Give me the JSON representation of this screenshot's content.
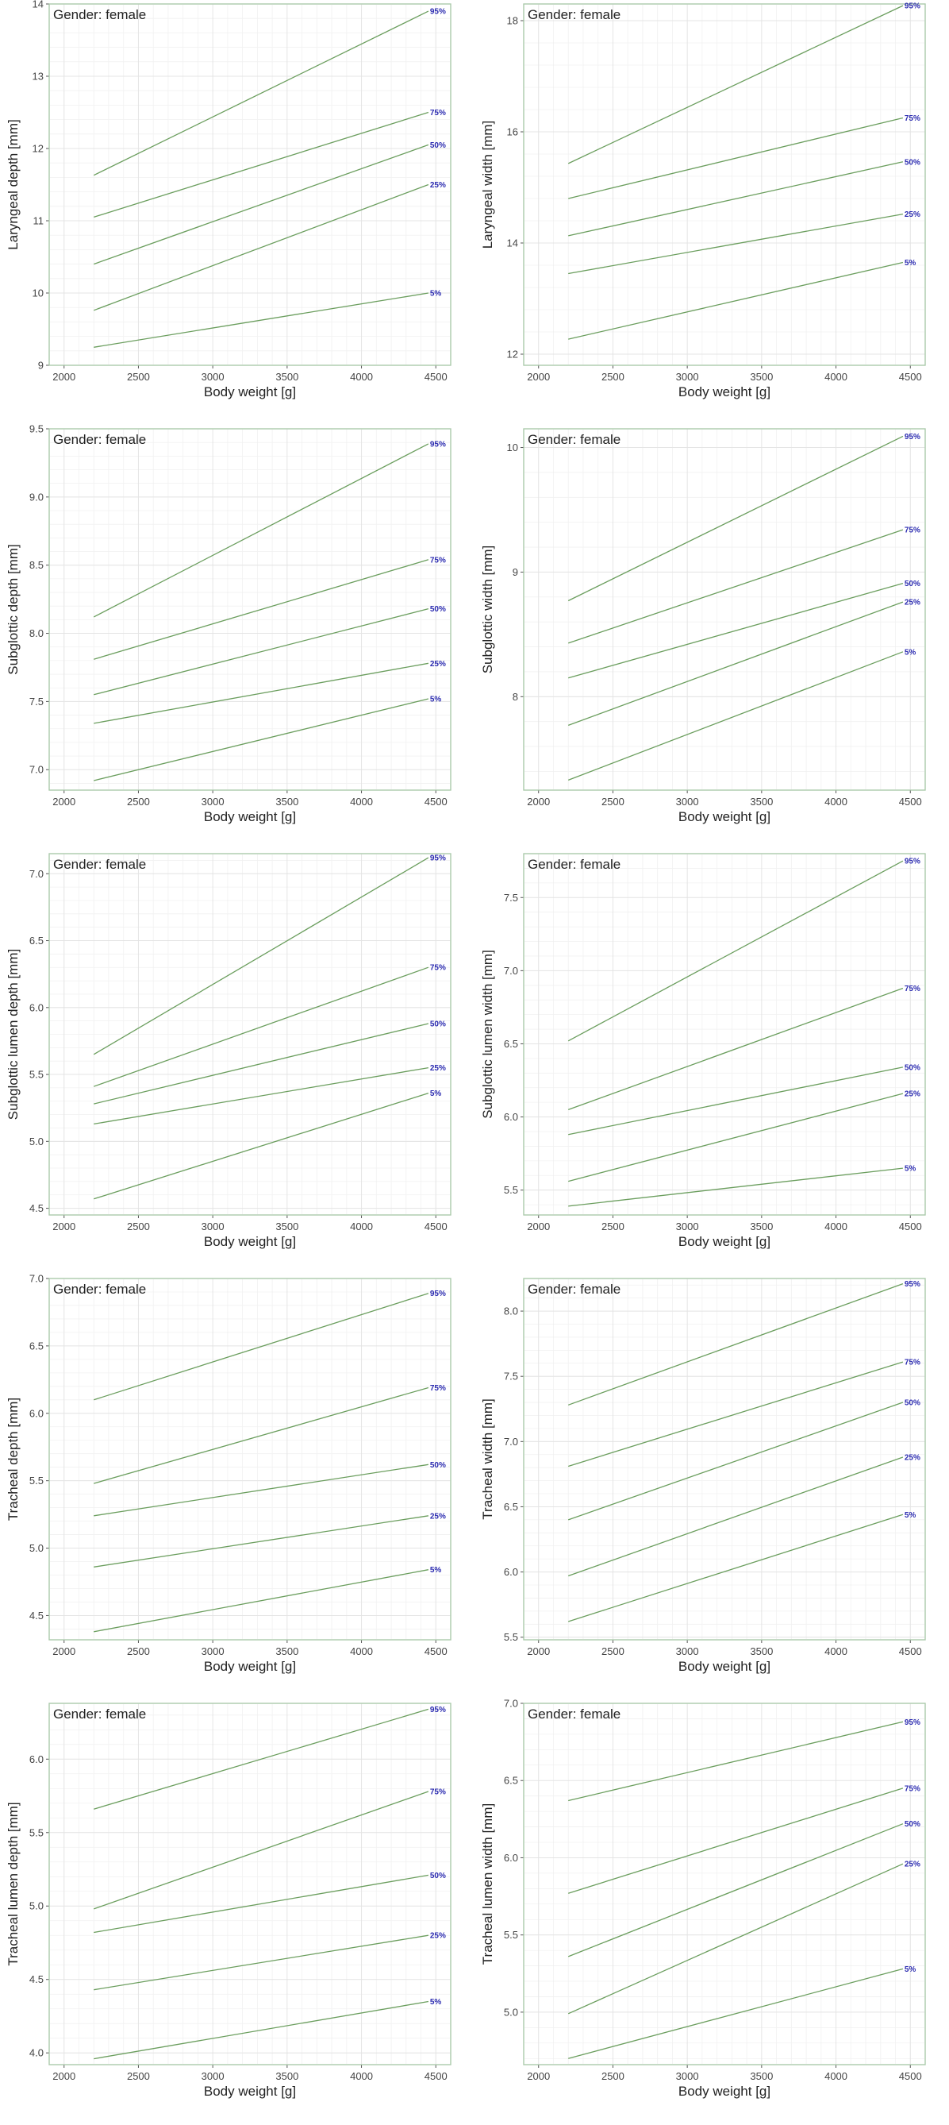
{
  "chart_data": [
    {
      "type": "line",
      "title": "Gender: female",
      "xlabel": "Body weight [g]",
      "ylabel": "Laryngeal depth [mm]",
      "xlim": [
        1900,
        4600
      ],
      "ylim": [
        9.0,
        14.0
      ],
      "xticks": [
        2000,
        2500,
        3000,
        3500,
        4000,
        4500
      ],
      "yticks": [
        9,
        10,
        11,
        12,
        13,
        14
      ],
      "x": [
        2200,
        4450
      ],
      "series": [
        {
          "name": "5%",
          "values": [
            9.25,
            10.0
          ]
        },
        {
          "name": "25%",
          "values": [
            9.76,
            11.5
          ]
        },
        {
          "name": "50%",
          "values": [
            10.4,
            12.05
          ]
        },
        {
          "name": "75%",
          "values": [
            11.05,
            12.5
          ]
        },
        {
          "name": "95%",
          "values": [
            11.63,
            13.9
          ]
        }
      ]
    },
    {
      "type": "line",
      "title": "Gender: female",
      "xlabel": "Body weight [g]",
      "ylabel": "Laryngeal width [mm]",
      "xlim": [
        1900,
        4600
      ],
      "ylim": [
        11.8,
        18.3
      ],
      "xticks": [
        2000,
        2500,
        3000,
        3500,
        4000,
        4500
      ],
      "yticks": [
        12,
        14,
        16,
        18
      ],
      "x": [
        2200,
        4450
      ],
      "series": [
        {
          "name": "5%",
          "values": [
            12.27,
            13.65
          ]
        },
        {
          "name": "25%",
          "values": [
            13.45,
            14.52
          ]
        },
        {
          "name": "50%",
          "values": [
            14.13,
            15.46
          ]
        },
        {
          "name": "75%",
          "values": [
            14.8,
            16.25
          ]
        },
        {
          "name": "95%",
          "values": [
            15.43,
            18.27
          ]
        }
      ]
    },
    {
      "type": "line",
      "title": "Gender: female",
      "xlabel": "Body weight [g]",
      "ylabel": "Subglottic depth [mm]",
      "xlim": [
        1900,
        4600
      ],
      "ylim": [
        6.85,
        9.5
      ],
      "xticks": [
        2000,
        2500,
        3000,
        3500,
        4000,
        4500
      ],
      "yticks": [
        7.0,
        7.5,
        8.0,
        8.5,
        9.0,
        9.5
      ],
      "x": [
        2200,
        4450
      ],
      "series": [
        {
          "name": "5%",
          "values": [
            6.92,
            7.52
          ]
        },
        {
          "name": "25%",
          "values": [
            7.34,
            7.78
          ]
        },
        {
          "name": "50%",
          "values": [
            7.55,
            8.18
          ]
        },
        {
          "name": "75%",
          "values": [
            7.81,
            8.54
          ]
        },
        {
          "name": "95%",
          "values": [
            8.12,
            9.39
          ]
        }
      ]
    },
    {
      "type": "line",
      "title": "Gender: female",
      "xlabel": "Body weight [g]",
      "ylabel": "Subglottic width [mm]",
      "xlim": [
        1900,
        4600
      ],
      "ylim": [
        7.25,
        10.15
      ],
      "xticks": [
        2000,
        2500,
        3000,
        3500,
        4000,
        4500
      ],
      "yticks": [
        8,
        9,
        10
      ],
      "x": [
        2200,
        4450
      ],
      "series": [
        {
          "name": "5%",
          "values": [
            7.33,
            8.36
          ]
        },
        {
          "name": "25%",
          "values": [
            7.77,
            8.76
          ]
        },
        {
          "name": "50%",
          "values": [
            8.15,
            8.91
          ]
        },
        {
          "name": "75%",
          "values": [
            8.43,
            9.34
          ]
        },
        {
          "name": "95%",
          "values": [
            8.77,
            10.09
          ]
        }
      ]
    },
    {
      "type": "line",
      "title": "Gender: female",
      "xlabel": "Body weight [g]",
      "ylabel": "Subglottic lumen depth [mm]",
      "xlim": [
        1900,
        4600
      ],
      "ylim": [
        4.45,
        7.15
      ],
      "xticks": [
        2000,
        2500,
        3000,
        3500,
        4000,
        4500
      ],
      "yticks": [
        4.5,
        5.0,
        5.5,
        6.0,
        6.5,
        7.0
      ],
      "x": [
        2200,
        4450
      ],
      "series": [
        {
          "name": "5%",
          "values": [
            4.57,
            5.36
          ]
        },
        {
          "name": "25%",
          "values": [
            5.13,
            5.55
          ]
        },
        {
          "name": "50%",
          "values": [
            5.28,
            5.88
          ]
        },
        {
          "name": "75%",
          "values": [
            5.41,
            6.3
          ]
        },
        {
          "name": "95%",
          "values": [
            5.65,
            7.12
          ]
        }
      ]
    },
    {
      "type": "line",
      "title": "Gender: female",
      "xlabel": "Body weight [g]",
      "ylabel": "Subglottic lumen width [mm]",
      "xlim": [
        1900,
        4600
      ],
      "ylim": [
        5.33,
        7.8
      ],
      "xticks": [
        2000,
        2500,
        3000,
        3500,
        4000,
        4500
      ],
      "yticks": [
        5.5,
        6.0,
        6.5,
        7.0,
        7.5
      ],
      "x": [
        2200,
        4450
      ],
      "series": [
        {
          "name": "5%",
          "values": [
            5.39,
            5.65
          ]
        },
        {
          "name": "25%",
          "values": [
            5.56,
            6.16
          ]
        },
        {
          "name": "50%",
          "values": [
            5.88,
            6.34
          ]
        },
        {
          "name": "75%",
          "values": [
            6.05,
            6.88
          ]
        },
        {
          "name": "95%",
          "values": [
            6.52,
            7.75
          ]
        }
      ]
    },
    {
      "type": "line",
      "title": "Gender: female",
      "xlabel": "Body weight [g]",
      "ylabel": "Tracheal depth [mm]",
      "xlim": [
        1900,
        4600
      ],
      "ylim": [
        4.32,
        7.0
      ],
      "xticks": [
        2000,
        2500,
        3000,
        3500,
        4000,
        4500
      ],
      "yticks": [
        4.5,
        5.0,
        5.5,
        6.0,
        6.5,
        7.0
      ],
      "x": [
        2200,
        4450
      ],
      "series": [
        {
          "name": "5%",
          "values": [
            4.38,
            4.84
          ]
        },
        {
          "name": "25%",
          "values": [
            4.86,
            5.24
          ]
        },
        {
          "name": "50%",
          "values": [
            5.24,
            5.62
          ]
        },
        {
          "name": "75%",
          "values": [
            5.48,
            6.19
          ]
        },
        {
          "name": "95%",
          "values": [
            6.1,
            6.89
          ]
        }
      ]
    },
    {
      "type": "line",
      "title": "Gender: female",
      "xlabel": "Body weight [g]",
      "ylabel": "Tracheal width [mm]",
      "xlim": [
        1900,
        4600
      ],
      "ylim": [
        5.48,
        8.25
      ],
      "xticks": [
        2000,
        2500,
        3000,
        3500,
        4000,
        4500
      ],
      "yticks": [
        5.5,
        6.0,
        6.5,
        7.0,
        7.5,
        8.0
      ],
      "x": [
        2200,
        4450
      ],
      "series": [
        {
          "name": "5%",
          "values": [
            5.62,
            6.44
          ]
        },
        {
          "name": "25%",
          "values": [
            5.97,
            6.88
          ]
        },
        {
          "name": "50%",
          "values": [
            6.4,
            7.3
          ]
        },
        {
          "name": "75%",
          "values": [
            6.81,
            7.61
          ]
        },
        {
          "name": "95%",
          "values": [
            7.28,
            8.21
          ]
        }
      ]
    },
    {
      "type": "line",
      "title": "Gender: female",
      "xlabel": "Body weight [g]",
      "ylabel": "Tracheal lumen depth [mm]",
      "xlim": [
        1900,
        4600
      ],
      "ylim": [
        3.92,
        6.38
      ],
      "xticks": [
        2000,
        2500,
        3000,
        3500,
        4000,
        4500
      ],
      "yticks": [
        4.0,
        4.5,
        5.0,
        5.5,
        6.0
      ],
      "x": [
        2200,
        4450
      ],
      "series": [
        {
          "name": "5%",
          "values": [
            3.96,
            4.35
          ]
        },
        {
          "name": "25%",
          "values": [
            4.43,
            4.8
          ]
        },
        {
          "name": "50%",
          "values": [
            4.82,
            5.21
          ]
        },
        {
          "name": "75%",
          "values": [
            4.98,
            5.78
          ]
        },
        {
          "name": "95%",
          "values": [
            5.66,
            6.34
          ]
        }
      ]
    },
    {
      "type": "line",
      "title": "Gender: female",
      "xlabel": "Body weight [g]",
      "ylabel": "Tracheal lumen width [mm]",
      "xlim": [
        1900,
        4600
      ],
      "ylim": [
        4.66,
        7.0
      ],
      "xticks": [
        2000,
        2500,
        3000,
        3500,
        4000,
        4500
      ],
      "yticks": [
        5.0,
        5.5,
        6.0,
        6.5,
        7.0
      ],
      "x": [
        2200,
        4450
      ],
      "series": [
        {
          "name": "5%",
          "values": [
            4.7,
            5.28
          ]
        },
        {
          "name": "25%",
          "values": [
            4.99,
            5.96
          ]
        },
        {
          "name": "50%",
          "values": [
            5.36,
            6.22
          ]
        },
        {
          "name": "75%",
          "values": [
            5.77,
            6.45
          ]
        },
        {
          "name": "95%",
          "values": [
            6.37,
            6.88
          ]
        }
      ]
    }
  ]
}
